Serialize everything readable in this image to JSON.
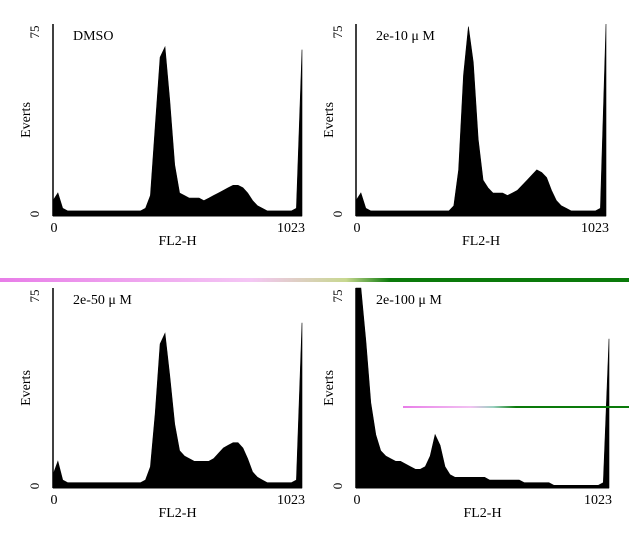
{
  "colors": {
    "fill": "#000000",
    "artifact_pink": "#e87de8",
    "artifact_green": "#0a7a0a"
  },
  "chart_data": [
    {
      "type": "area",
      "title": "DMSO",
      "xlabel": "FL2-H",
      "ylabel": "Everts",
      "xlim": [
        0,
        1023
      ],
      "ylim": [
        0,
        75
      ],
      "x_ticks": [
        "0",
        "1023"
      ],
      "y_ticks": [
        "0",
        "75"
      ],
      "series": [
        {
          "x": [
            0,
            20,
            40,
            60,
            80,
            100,
            120,
            140,
            160,
            180,
            200,
            220,
            240,
            260,
            280,
            300,
            320,
            340,
            360,
            380,
            400,
            420,
            440,
            460,
            480,
            500,
            520,
            540,
            560,
            580,
            600,
            620,
            640,
            660,
            680,
            700,
            720,
            740,
            760,
            780,
            800,
            820,
            840,
            860,
            880,
            900,
            920,
            940,
            960,
            980,
            1000,
            1023
          ],
          "values": [
            6,
            9,
            3,
            2,
            2,
            2,
            2,
            2,
            2,
            2,
            2,
            2,
            2,
            2,
            2,
            2,
            2,
            2,
            2,
            3,
            8,
            35,
            62,
            66,
            45,
            20,
            9,
            8,
            7,
            7,
            7,
            6,
            7,
            8,
            9,
            10,
            11,
            12,
            12,
            11,
            9,
            6,
            4,
            3,
            2,
            2,
            2,
            2,
            2,
            2,
            3,
            65
          ]
        }
      ]
    },
    {
      "type": "area",
      "title": "2e-10 μ M",
      "xlabel": "FL2-H",
      "ylabel": "Everts",
      "xlim": [
        0,
        1023
      ],
      "ylim": [
        0,
        75
      ],
      "x_ticks": [
        "0",
        "1023"
      ],
      "y_ticks": [
        "0",
        "75"
      ],
      "series": [
        {
          "x": [
            0,
            20,
            40,
            60,
            80,
            100,
            120,
            140,
            160,
            180,
            200,
            220,
            240,
            260,
            280,
            300,
            320,
            340,
            360,
            380,
            400,
            420,
            440,
            460,
            480,
            500,
            520,
            540,
            560,
            580,
            600,
            620,
            640,
            660,
            680,
            700,
            720,
            740,
            760,
            780,
            800,
            820,
            840,
            860,
            880,
            900,
            920,
            940,
            960,
            980,
            1000,
            1023
          ],
          "values": [
            6,
            9,
            3,
            2,
            2,
            2,
            2,
            2,
            2,
            2,
            2,
            2,
            2,
            2,
            2,
            2,
            2,
            2,
            2,
            2,
            4,
            18,
            55,
            74,
            60,
            30,
            14,
            11,
            9,
            9,
            9,
            8,
            9,
            10,
            12,
            14,
            16,
            18,
            17,
            15,
            10,
            6,
            4,
            3,
            2,
            2,
            2,
            2,
            2,
            2,
            3,
            75
          ]
        }
      ]
    },
    {
      "type": "area",
      "title": "2e-50 μ M",
      "xlabel": "FL2-H",
      "ylabel": "Everts",
      "xlim": [
        0,
        1023
      ],
      "ylim": [
        0,
        75
      ],
      "x_ticks": [
        "0",
        "1023"
      ],
      "y_ticks": [
        "0",
        "75"
      ],
      "series": [
        {
          "x": [
            0,
            20,
            40,
            60,
            80,
            100,
            120,
            140,
            160,
            180,
            200,
            220,
            240,
            260,
            280,
            300,
            320,
            340,
            360,
            380,
            400,
            420,
            440,
            460,
            480,
            500,
            520,
            540,
            560,
            580,
            600,
            620,
            640,
            660,
            680,
            700,
            720,
            740,
            760,
            780,
            800,
            820,
            840,
            860,
            880,
            900,
            920,
            940,
            960,
            980,
            1000,
            1023
          ],
          "values": [
            5,
            10,
            3,
            2,
            2,
            2,
            2,
            2,
            2,
            2,
            2,
            2,
            2,
            2,
            2,
            2,
            2,
            2,
            2,
            3,
            8,
            28,
            54,
            58,
            42,
            24,
            14,
            12,
            11,
            10,
            10,
            10,
            10,
            11,
            13,
            15,
            16,
            17,
            17,
            15,
            11,
            6,
            4,
            3,
            2,
            2,
            2,
            2,
            2,
            2,
            3,
            62
          ]
        }
      ]
    },
    {
      "type": "area",
      "title": "2e-100 μ M",
      "xlabel": "FL2-H",
      "ylabel": "Everts",
      "xlim": [
        0,
        1023
      ],
      "ylim": [
        0,
        75
      ],
      "x_ticks": [
        "0",
        "1023"
      ],
      "y_ticks": [
        "0",
        "75"
      ],
      "series": [
        {
          "x": [
            0,
            20,
            40,
            60,
            80,
            100,
            120,
            140,
            160,
            180,
            200,
            220,
            240,
            260,
            280,
            300,
            320,
            340,
            360,
            380,
            400,
            420,
            440,
            460,
            480,
            500,
            520,
            540,
            560,
            580,
            600,
            620,
            640,
            660,
            680,
            700,
            720,
            740,
            760,
            780,
            800,
            820,
            840,
            860,
            880,
            900,
            920,
            940,
            960,
            980,
            1000,
            1023
          ],
          "values": [
            75,
            75,
            55,
            32,
            20,
            14,
            12,
            11,
            10,
            10,
            9,
            8,
            7,
            7,
            8,
            12,
            20,
            16,
            8,
            5,
            4,
            4,
            4,
            4,
            4,
            4,
            4,
            3,
            3,
            3,
            3,
            3,
            3,
            3,
            2,
            2,
            2,
            2,
            2,
            2,
            1,
            1,
            1,
            1,
            1,
            1,
            1,
            1,
            1,
            1,
            2,
            56
          ]
        }
      ]
    }
  ]
}
